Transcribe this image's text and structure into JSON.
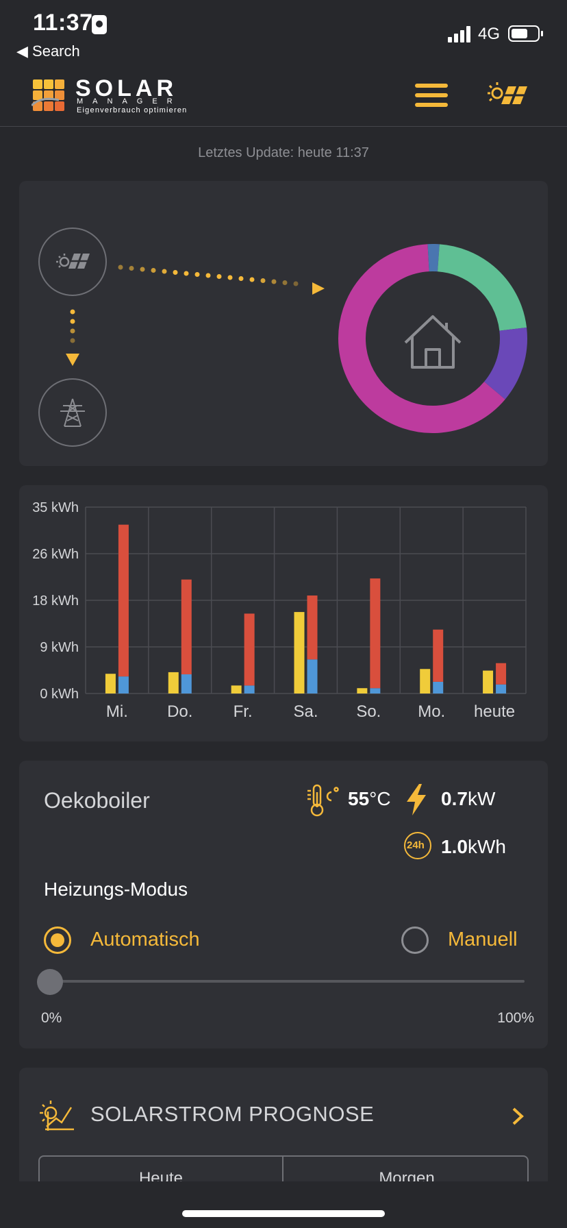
{
  "status_bar": {
    "time": "11:37",
    "back_label": "◀ Search",
    "network": "4G",
    "battery_percent": 65
  },
  "header": {
    "logo_title": "SOLAR",
    "logo_subtitle": "MANAGER",
    "logo_tagline": "Eigenverbrauch optimieren"
  },
  "update_text": "Letztes Update: heute 11:37",
  "energy_flow": {
    "donut_segments": [
      {
        "name": "pink",
        "fraction": 0.63,
        "color": "#bd3b9e"
      },
      {
        "name": "blue",
        "fraction": 0.02,
        "color": "#4a76b0"
      },
      {
        "name": "green",
        "fraction": 0.22,
        "color": "#5fbf94"
      },
      {
        "name": "purple",
        "fraction": 0.13,
        "color": "#6a48b8"
      }
    ]
  },
  "chart_data": {
    "type": "bar",
    "categories": [
      "Mi.",
      "Do.",
      "Fr.",
      "Sa.",
      "So.",
      "Mo.",
      "heute"
    ],
    "y_ticks": [
      "35 kWh",
      "26 kWh",
      "18 kWh",
      "9 kWh",
      "0 kWh"
    ],
    "ylim": [
      0,
      35
    ],
    "series": [
      {
        "name": "production",
        "color": "#f0cc3a",
        "values": [
          3.7,
          4.0,
          1.5,
          15.3,
          1.0,
          4.6,
          4.3
        ]
      },
      {
        "name": "self-consumption",
        "color": "#4f97d8",
        "values": [
          3.2,
          3.6,
          1.5,
          6.4,
          1.0,
          2.2,
          1.7
        ]
      },
      {
        "name": "grid-import",
        "color": "#d94f3d",
        "values": [
          28.5,
          17.8,
          13.5,
          12.0,
          20.6,
          9.8,
          4.0
        ]
      }
    ]
  },
  "boiler": {
    "title": "Oekoboiler",
    "temperature_value": "55",
    "temperature_unit": "°C",
    "power_value": "0.7",
    "power_unit": "kW",
    "energy_value": "1.0",
    "energy_unit": "kWh",
    "energy_icon_text": "24h",
    "mode_label": "Heizungs-Modus",
    "mode_auto": "Automatisch",
    "mode_manual": "Manuell",
    "selected_mode": "auto",
    "slider_min": "0%",
    "slider_max": "100%",
    "slider_value_percent": 0
  },
  "forecast": {
    "title": "SOLARSTROM PROGNOSE",
    "tabs": [
      "Heute",
      "Morgen"
    ]
  },
  "colors": {
    "accent": "#f5b93a",
    "background": "#27282c",
    "card": "#2f3035"
  }
}
